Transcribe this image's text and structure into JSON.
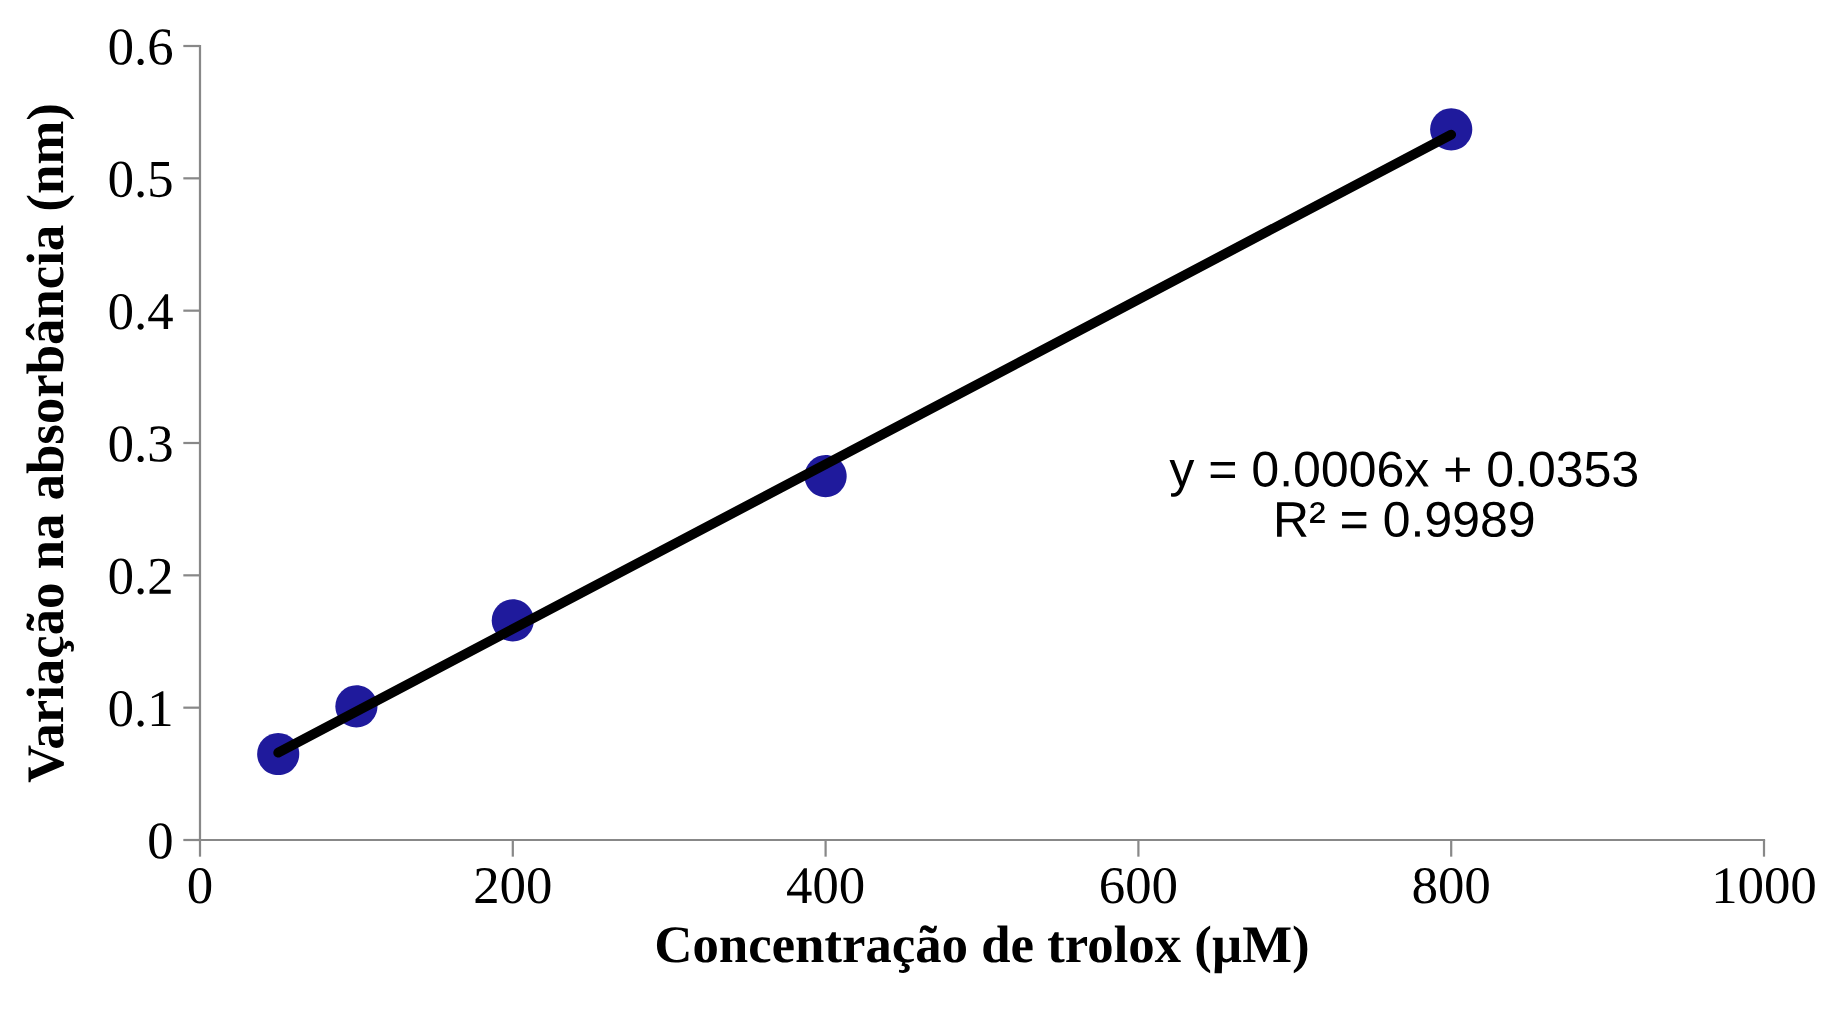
{
  "chart_data": {
    "type": "scatter",
    "xlabel": "Concentração de trolox (µM)",
    "ylabel": "Variação na absorbância (nm)",
    "x": [
      50,
      100,
      200,
      400,
      800
    ],
    "series": [
      {
        "color": "#1f1a9c",
        "values": [
          0.065,
          0.101,
          0.166,
          0.275,
          0.537
        ],
        "marker": "circle"
      },
      {
        "type": "line",
        "color": "#000000",
        "x": [
          50,
          800
        ],
        "values": [
          0.066,
          0.533
        ],
        "marker": "none",
        "line_style": "solid"
      }
    ],
    "xlim": [
      0,
      1000
    ],
    "xticks": [
      0,
      200,
      400,
      600,
      800,
      1000
    ],
    "ylim": [
      0,
      0.6
    ],
    "yticks": [
      0,
      0.1,
      0.2,
      0.3,
      0.4,
      0.5,
      0.6
    ],
    "grid": false,
    "legend": false,
    "annotations": [
      "y = 0.0006x + 0.0353\nR² = 0.9989"
    ]
  }
}
